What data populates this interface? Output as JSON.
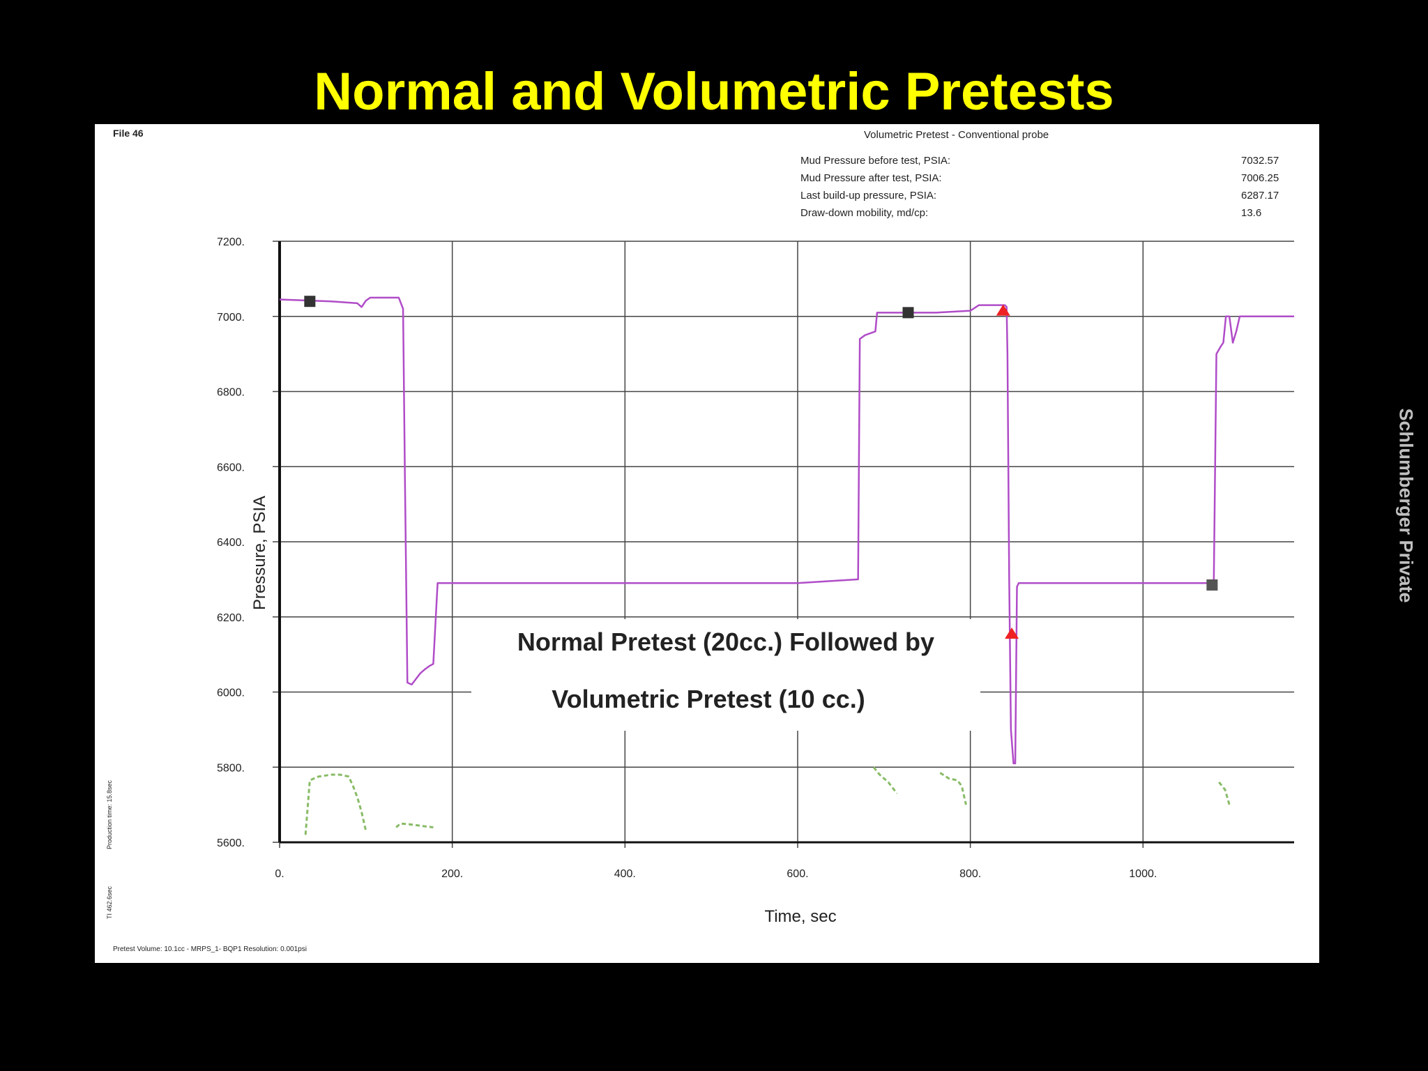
{
  "slide": {
    "title": "Normal and Volumetric Pretests",
    "side_note": "Schlumberger Private"
  },
  "chart_data": {
    "type": "line",
    "file_label": "File 46",
    "title": "Volumetric Pretest - Conventional probe",
    "info_table": [
      {
        "label": "Mud Pressure before test, PSIA:",
        "value": "7032.57"
      },
      {
        "label": "Mud Pressure after test, PSIA:",
        "value": "7006.25"
      },
      {
        "label": "Last build-up pressure, PSIA:",
        "value": "6287.17"
      },
      {
        "label": "Draw-down mobility, md/cp:",
        "value": "13.6"
      }
    ],
    "xlabel": "Time, sec",
    "ylabel": "Pressure, PSIA",
    "xlim": [
      0,
      1175
    ],
    "ylim": [
      5600,
      7200
    ],
    "x_ticks": [
      0,
      200,
      400,
      600,
      800,
      1000
    ],
    "x_tick_labels": [
      "0.",
      "200.",
      "400.",
      "600.",
      "800.",
      "1000."
    ],
    "y_ticks": [
      5600,
      5800,
      6000,
      6200,
      6400,
      6600,
      6800,
      7000,
      7200
    ],
    "y_tick_labels": [
      "5600.",
      "5800.",
      "6000.",
      "6200.",
      "6400.",
      "6600.",
      "6800.",
      "7000.",
      "7200."
    ],
    "grid": true,
    "series": [
      {
        "color": "#b04cc8",
        "x": [
          0,
          60,
          90,
          95,
          100,
          105,
          138,
          143,
          145,
          148,
          153,
          158,
          163,
          168,
          174,
          178,
          183,
          250,
          400,
          600,
          670,
          672,
          678,
          690,
          692,
          760,
          800,
          810,
          840,
          842,
          843,
          845,
          847,
          850,
          852,
          854,
          856,
          860,
          1080,
          1082,
          1085,
          1090,
          1093,
          1096,
          1100,
          1104,
          1108,
          1112,
          1175
        ],
        "y": [
          7045,
          7040,
          7035,
          7025,
          7042,
          7050,
          7050,
          7020,
          6600,
          6025,
          6020,
          6035,
          6050,
          6060,
          6070,
          6075,
          6290,
          6290,
          6290,
          6290,
          6300,
          6940,
          6950,
          6960,
          7010,
          7010,
          7015,
          7030,
          7030,
          7025,
          6900,
          6300,
          5900,
          5810,
          5810,
          6280,
          6290,
          6290,
          6290,
          6300,
          6900,
          6920,
          6930,
          7000,
          7000,
          6930,
          6960,
          7000,
          7000
        ]
      },
      {
        "color": "#88bb66",
        "segments": [
          {
            "x": [
              30,
              35,
              45,
              60,
              70,
              80,
              85,
              90,
              95,
              100
            ],
            "y": [
              5620,
              5765,
              5775,
              5780,
              5780,
              5775,
              5750,
              5720,
              5680,
              5630
            ]
          },
          {
            "x": [
              135,
              140,
              150,
              160,
              170,
              178
            ],
            "y": [
              5640,
              5650,
              5648,
              5645,
              5642,
              5640
            ]
          },
          {
            "x": [
              688,
              695,
              705,
              715
            ],
            "y": [
              5800,
              5780,
              5760,
              5730
            ]
          },
          {
            "x": [
              765,
              775,
              785,
              790,
              795
            ],
            "y": [
              5785,
              5770,
              5765,
              5750,
              5700
            ]
          },
          {
            "x": [
              1088,
              1095,
              1100
            ],
            "y": [
              5760,
              5740,
              5700
            ]
          }
        ]
      }
    ],
    "markers": [
      {
        "x": 35,
        "y": 7040,
        "shape": "square",
        "color": "#333333"
      },
      {
        "x": 728,
        "y": 7010,
        "shape": "square",
        "color": "#333333"
      },
      {
        "x": 1080,
        "y": 6285,
        "shape": "square",
        "color": "#555555"
      },
      {
        "x": 838,
        "y": 7015,
        "shape": "triangle",
        "color": "#ee2222"
      },
      {
        "x": 848,
        "y": 6155,
        "shape": "triangle",
        "color": "#ee2222"
      }
    ],
    "annotation": [
      "Normal Pretest (20cc.) Followed by",
      "Volumetric Pretest (10 cc.)"
    ],
    "side_labels": [
      "TI 462.6sec",
      "Production time: 15.8sec"
    ],
    "footer": "Pretest Volume: 10.1cc  -  MRPS_1-  BQP1  Resolution: 0.001psi"
  }
}
